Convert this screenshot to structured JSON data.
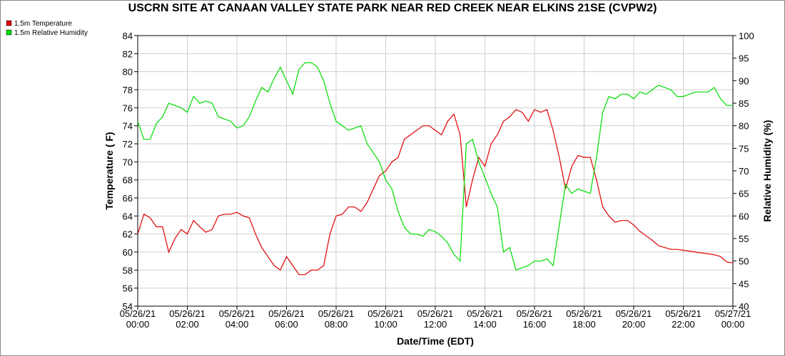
{
  "chart_data": {
    "type": "line",
    "title": "USCRN SITE AT CANAAN VALLEY STATE PARK NEAR RED CREEK NEAR ELKINS 21SE (CVPW2)",
    "x_label": "Date/Time (EDT)",
    "y_label": "Temperature ( F)",
    "y2_label": "Relative Humidity (%)",
    "xlim": [
      0,
      24
    ],
    "xticks": [
      {
        "value": 0,
        "label": [
          "05/26/21",
          "00:00"
        ]
      },
      {
        "value": 2,
        "label": [
          "05/26/21",
          "02:00"
        ]
      },
      {
        "value": 4,
        "label": [
          "05/26/21",
          "04:00"
        ]
      },
      {
        "value": 6,
        "label": [
          "05/26/21",
          "06:00"
        ]
      },
      {
        "value": 8,
        "label": [
          "05/26/21",
          "08:00"
        ]
      },
      {
        "value": 10,
        "label": [
          "05/26/21",
          "10:00"
        ]
      },
      {
        "value": 12,
        "label": [
          "05/26/21",
          "12:00"
        ]
      },
      {
        "value": 14,
        "label": [
          "05/26/21",
          "14:00"
        ]
      },
      {
        "value": 16,
        "label": [
          "05/26/21",
          "16:00"
        ]
      },
      {
        "value": 18,
        "label": [
          "05/26/21",
          "18:00"
        ]
      },
      {
        "value": 20,
        "label": [
          "05/26/21",
          "20:00"
        ]
      },
      {
        "value": 22,
        "label": [
          "05/26/21",
          "22:00"
        ]
      },
      {
        "value": 24,
        "label": [
          "05/27/21",
          "00:00"
        ]
      }
    ],
    "ylim": [
      54,
      84
    ],
    "yticks": [
      54,
      56,
      58,
      60,
      62,
      64,
      66,
      68,
      70,
      72,
      74,
      76,
      78,
      80,
      82,
      84
    ],
    "y2lim": [
      40,
      100
    ],
    "y2ticks": [
      40,
      45,
      50,
      55,
      60,
      65,
      70,
      75,
      80,
      85,
      90,
      95,
      100
    ],
    "grid": true,
    "legend": "top-left",
    "x": [
      0,
      0.25,
      0.5,
      0.75,
      1,
      1.25,
      1.5,
      1.75,
      2,
      2.25,
      2.5,
      2.75,
      3,
      3.25,
      3.5,
      3.75,
      4,
      4.25,
      4.5,
      4.75,
      5,
      5.25,
      5.5,
      5.75,
      6,
      6.25,
      6.5,
      6.75,
      7,
      7.25,
      7.5,
      7.75,
      8,
      8.25,
      8.5,
      8.75,
      9,
      9.25,
      9.5,
      9.75,
      10,
      10.25,
      10.5,
      10.75,
      11,
      11.25,
      11.5,
      11.75,
      12,
      12.25,
      12.5,
      12.75,
      13,
      13.25,
      13.5,
      13.75,
      14,
      14.25,
      14.5,
      14.75,
      15,
      15.25,
      15.5,
      15.75,
      16,
      16.25,
      16.5,
      16.75,
      17,
      17.25,
      17.5,
      17.75,
      18,
      18.25,
      18.5,
      18.75,
      19,
      19.25,
      19.5,
      19.75,
      20,
      20.25,
      20.5,
      20.75,
      21,
      21.25,
      21.5,
      21.75,
      22,
      22.25,
      22.5,
      22.75,
      23,
      23.25,
      23.5,
      23.75,
      24
    ],
    "series": [
      {
        "name": "1.5m Temperature",
        "color": "#e00000",
        "axis": "y",
        "values": [
          62.0,
          64.2,
          63.8,
          62.8,
          62.8,
          60.0,
          61.5,
          62.5,
          62.0,
          63.5,
          62.8,
          62.2,
          62.5,
          64.0,
          64.2,
          64.2,
          64.4,
          64.0,
          63.8,
          62.0,
          60.5,
          59.5,
          58.5,
          58.0,
          59.5,
          58.5,
          57.5,
          57.5,
          58.0,
          58.0,
          58.5,
          62.0,
          64.0,
          64.2,
          65.0,
          65.0,
          64.5,
          65.5,
          67.0,
          68.5,
          69.0,
          70.0,
          70.5,
          72.5,
          73.0,
          73.5,
          74.0,
          74.0,
          73.5,
          73.0,
          74.5,
          75.3,
          73.0,
          65.0,
          68.0,
          70.5,
          69.5,
          72.0,
          73.0,
          74.5,
          75.0,
          75.8,
          75.5,
          74.5,
          75.8,
          75.5,
          75.8,
          73.5,
          70.5,
          67.0,
          69.5,
          70.7,
          70.5,
          70.5,
          68.0,
          65.0,
          64.0,
          63.3,
          63.5,
          63.5,
          63.0,
          62.3,
          61.8,
          61.3,
          60.7,
          60.5,
          60.3,
          60.3,
          60.2,
          60.1,
          60.0,
          59.9,
          59.8,
          59.7,
          59.5,
          58.9,
          58.8
        ]
      },
      {
        "name": "1.5m Relative Humidity",
        "color": "#00dd00",
        "axis": "y2",
        "values": [
          81,
          77,
          77,
          80.5,
          82,
          85,
          84.5,
          84,
          83,
          86.5,
          85,
          85.5,
          85,
          82,
          81.5,
          81,
          79.5,
          80,
          82,
          85.5,
          88.5,
          87.5,
          90.5,
          93,
          90,
          87,
          92.5,
          94,
          94,
          93,
          90,
          85,
          81,
          80,
          79,
          79.5,
          80,
          76,
          74,
          72,
          68,
          66,
          61,
          57.5,
          56,
          56,
          55.5,
          57,
          56.5,
          55.5,
          54,
          51.5,
          50,
          76,
          77,
          72,
          68.5,
          65,
          62,
          52,
          53,
          48,
          48.5,
          49,
          50,
          50,
          50.5,
          49,
          58,
          67,
          65,
          66,
          65.5,
          65,
          73,
          83,
          86.5,
          86,
          87,
          87,
          86,
          87.5,
          87,
          88,
          89,
          88.5,
          88,
          86.5,
          86.5,
          87,
          87.5,
          87.5,
          87.5,
          88.5,
          86,
          84.5,
          84.5
        ]
      }
    ]
  }
}
